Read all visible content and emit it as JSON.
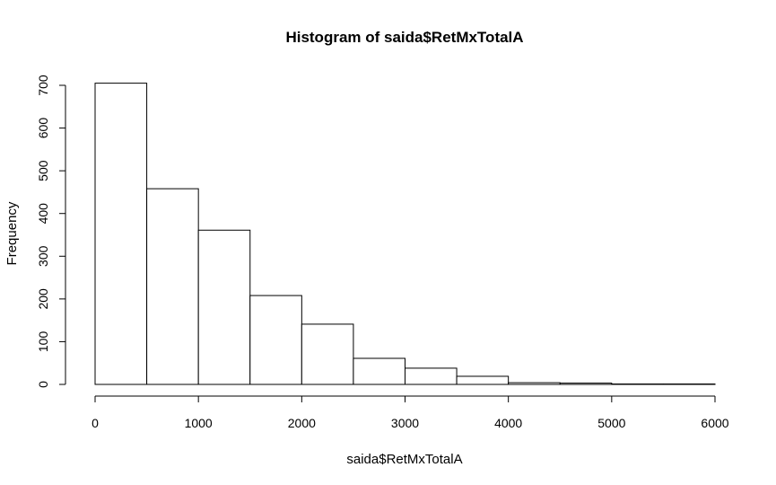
{
  "chart_data": {
    "type": "bar",
    "subtype": "histogram",
    "title": "Histogram of saida$RetMxTotalA",
    "xlabel": "saida$RetMxTotalA",
    "ylabel": "Frequency",
    "bins": [
      {
        "x0": 0,
        "x1": 500,
        "count": 705
      },
      {
        "x0": 500,
        "x1": 1000,
        "count": 458
      },
      {
        "x0": 1000,
        "x1": 1500,
        "count": 361
      },
      {
        "x0": 1500,
        "x1": 2000,
        "count": 208
      },
      {
        "x0": 2000,
        "x1": 2500,
        "count": 141
      },
      {
        "x0": 2500,
        "x1": 3000,
        "count": 61
      },
      {
        "x0": 3000,
        "x1": 3500,
        "count": 38
      },
      {
        "x0": 3500,
        "x1": 4000,
        "count": 19
      },
      {
        "x0": 4000,
        "x1": 4500,
        "count": 4
      },
      {
        "x0": 4500,
        "x1": 5000,
        "count": 3
      },
      {
        "x0": 5000,
        "x1": 5500,
        "count": 1
      },
      {
        "x0": 5500,
        "x1": 6000,
        "count": 1
      }
    ],
    "xlim": [
      0,
      6000
    ],
    "ylim": [
      0,
      700
    ],
    "xticks": [
      "0",
      "1000",
      "2000",
      "3000",
      "4000",
      "5000",
      "6000"
    ],
    "yticks": [
      "0",
      "100",
      "200",
      "300",
      "400",
      "500",
      "600",
      "700"
    ],
    "grid": false,
    "bar_fill": "#ffffff",
    "bar_stroke": "#000000"
  }
}
